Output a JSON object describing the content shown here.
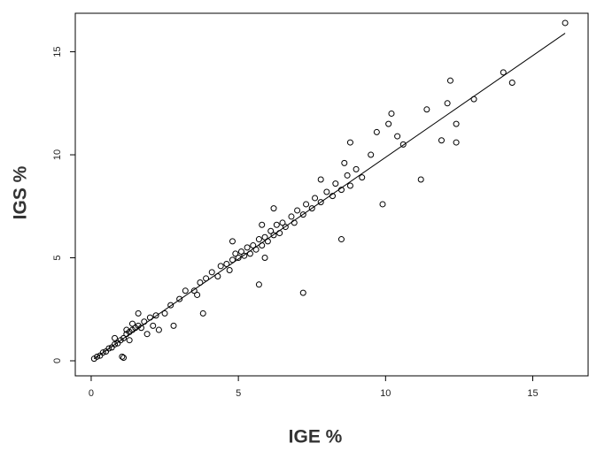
{
  "chart_data": {
    "type": "scatter",
    "x_label": "IGE %",
    "y_label": "IGS %",
    "x": [
      0.1,
      0.2,
      0.3,
      0.4,
      0.5,
      0.6,
      0.7,
      0.8,
      0.9,
      1.0,
      1.1,
      1.2,
      1.3,
      1.4,
      1.5,
      1.6,
      1.7,
      1.8,
      1.4,
      1.2,
      1.6,
      2.0,
      1.9,
      2.2,
      2.5,
      2.7,
      3.0,
      3.2,
      3.5,
      3.7,
      3.9,
      4.1,
      4.3,
      4.4,
      4.6,
      4.7,
      4.8,
      4.9,
      5.0,
      5.1,
      5.2,
      5.3,
      5.4,
      5.5,
      5.6,
      5.7,
      5.8,
      5.9,
      6.0,
      6.1,
      6.2,
      6.3,
      6.4,
      6.5,
      6.6,
      6.8,
      6.9,
      7.0,
      7.2,
      7.3,
      7.5,
      7.6,
      7.8,
      8.0,
      8.2,
      8.3,
      8.5,
      8.7,
      8.8,
      9.0,
      9.2,
      9.5,
      9.7,
      8.8,
      10.1,
      10.2,
      10.4,
      10.6,
      11.4,
      11.9,
      12.1,
      12.2,
      12.4,
      12.4,
      13.0,
      14.0,
      14.3,
      16.1,
      5.8,
      6.2,
      4.8,
      3.6,
      5.9,
      7.2,
      5.7,
      8.5,
      9.9,
      11.2,
      3.8,
      2.8,
      2.3,
      1.05,
      1.1,
      7.8,
      8.6,
      2.1,
      1.3,
      0.8
    ],
    "y": [
      0.1,
      0.2,
      0.25,
      0.4,
      0.45,
      0.6,
      0.65,
      0.8,
      0.85,
      1.0,
      1.1,
      1.3,
      1.4,
      1.5,
      1.6,
      1.7,
      1.6,
      1.9,
      1.8,
      1.5,
      2.3,
      2.1,
      1.3,
      2.2,
      2.3,
      2.7,
      3.0,
      3.4,
      3.4,
      3.8,
      4.0,
      4.3,
      4.1,
      4.6,
      4.7,
      4.4,
      4.9,
      5.2,
      5.0,
      5.3,
      5.1,
      5.5,
      5.2,
      5.6,
      5.4,
      5.9,
      5.6,
      6.0,
      5.8,
      6.3,
      6.1,
      6.6,
      6.2,
      6.7,
      6.5,
      7.0,
      6.7,
      7.3,
      7.1,
      7.6,
      7.4,
      7.9,
      7.7,
      8.2,
      8.0,
      8.6,
      8.3,
      9.0,
      8.5,
      9.3,
      8.9,
      10.0,
      11.1,
      10.6,
      11.5,
      12.0,
      10.9,
      10.5,
      12.2,
      10.7,
      12.5,
      13.6,
      11.5,
      10.6,
      12.7,
      14.0,
      13.5,
      16.4,
      6.6,
      7.4,
      5.8,
      3.2,
      5.0,
      3.3,
      3.7,
      5.9,
      7.6,
      8.8,
      2.3,
      1.7,
      1.5,
      0.2,
      0.15,
      8.8,
      9.6,
      1.7,
      1.0,
      1.1
    ],
    "fit_line": {
      "x": [
        0.1,
        16.1
      ],
      "y": [
        0.1,
        15.9
      ]
    },
    "color": "#000000",
    "xlim": [
      -0.54,
      16.88
    ],
    "ylim": [
      -0.73,
      16.87
    ],
    "xticks": [
      0,
      5,
      10,
      15
    ],
    "yticks": [
      0,
      5,
      10,
      15
    ]
  }
}
